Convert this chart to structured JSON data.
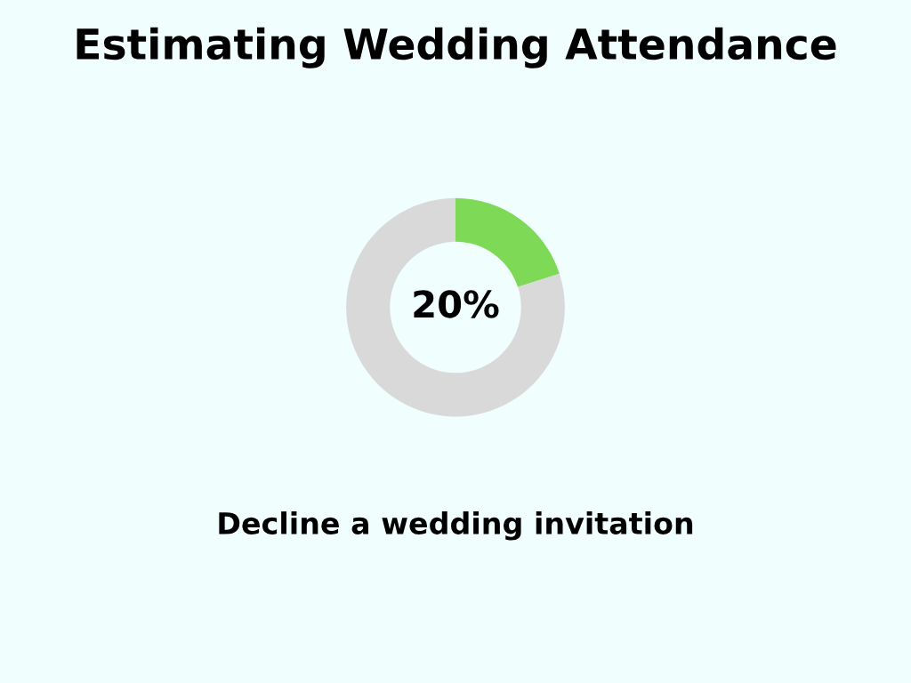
{
  "chart_data": {
    "type": "donut",
    "title": "Estimating Wedding Attendance",
    "categories": [
      null,
      null
    ],
    "values": [
      20,
      80
    ],
    "colors": [
      "#7ed957",
      "#d9d9d9"
    ],
    "value_labels": [
      "20%",
      null
    ],
    "annotations": [
      "Decline a wedding invitation"
    ]
  }
}
